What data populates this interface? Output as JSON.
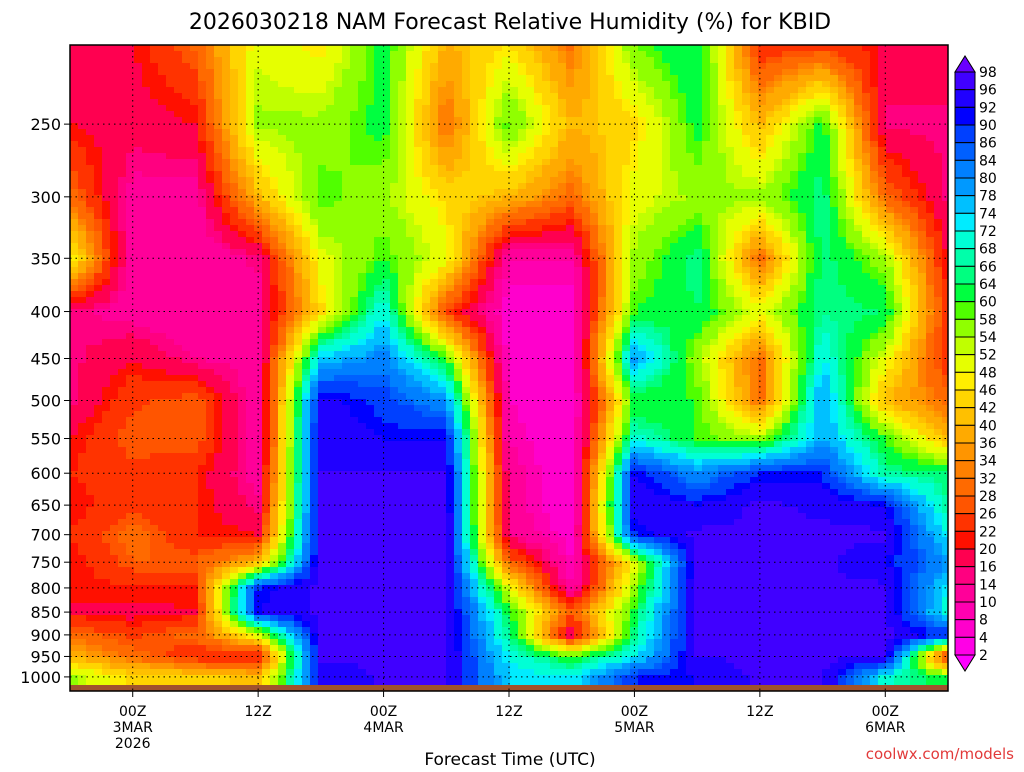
{
  "chart_data": {
    "type": "heatmap",
    "title": "2026030218 NAM Forecast Relative Humidity (%) for KBID",
    "xlabel": "Forecast Time (UTC)",
    "ylabel": "",
    "credit": "coolwx.com/models",
    "x_unit": "forecast hour",
    "xlim": [
      -6,
      78
    ],
    "ylim_hPa": [
      205,
      1036
    ],
    "y_scale": "log-pressure",
    "grid": true,
    "y_ticks": [
      "250",
      "300",
      "350",
      "400",
      "450",
      "500",
      "550",
      "600",
      "650",
      "700",
      "750",
      "800",
      "850",
      "900",
      "950",
      "1000"
    ],
    "y_tick_values": [
      250,
      300,
      350,
      400,
      450,
      500,
      550,
      600,
      650,
      700,
      750,
      800,
      850,
      900,
      950,
      1000
    ],
    "x_ticks": [
      {
        "hour": 0,
        "lines": [
          "00Z",
          "3MAR",
          "2026"
        ]
      },
      {
        "hour": 12,
        "lines": [
          "12Z"
        ]
      },
      {
        "hour": 24,
        "lines": [
          "00Z",
          "4MAR"
        ]
      },
      {
        "hour": 36,
        "lines": [
          "12Z"
        ]
      },
      {
        "hour": 48,
        "lines": [
          "00Z",
          "5MAR"
        ]
      },
      {
        "hour": 60,
        "lines": [
          "12Z"
        ]
      },
      {
        "hour": 72,
        "lines": [
          "00Z",
          "6MAR"
        ]
      }
    ],
    "colorbar": {
      "labels": [
        "98",
        "96",
        "92",
        "90",
        "86",
        "84",
        "80",
        "78",
        "74",
        "72",
        "68",
        "66",
        "64",
        "60",
        "58",
        "54",
        "52",
        "48",
        "46",
        "42",
        "40",
        "36",
        "34",
        "32",
        "28",
        "26",
        "22",
        "20",
        "16",
        "14",
        "10",
        "8",
        "4",
        "2"
      ],
      "thresholds": [
        2,
        4,
        8,
        10,
        14,
        16,
        20,
        22,
        26,
        28,
        32,
        34,
        36,
        40,
        42,
        46,
        48,
        52,
        54,
        58,
        60,
        64,
        66,
        68,
        72,
        74,
        78,
        80,
        84,
        86,
        90,
        92,
        96,
        98
      ],
      "colors": [
        "#ff00ff",
        "#ff00e6",
        "#ff00cc",
        "#ff00b0",
        "#ff0099",
        "#ff0080",
        "#ff0050",
        "#ff1000",
        "#ff3300",
        "#ff5500",
        "#ff6a00",
        "#ff8000",
        "#ff9500",
        "#ffaa00",
        "#ffc000",
        "#ffd500",
        "#ffee00",
        "#e6ff00",
        "#c0ff00",
        "#90ff00",
        "#50ff00",
        "#00ff40",
        "#00ff80",
        "#00ffaa",
        "#00ffd5",
        "#00ecff",
        "#00c0ff",
        "#0099ff",
        "#0080ff",
        "#0060ff",
        "#0040ff",
        "#0000ff",
        "#2000ff",
        "#4000ff",
        "#6a00ff"
      ]
    },
    "times": [
      -6,
      0,
      6,
      12,
      18,
      24,
      30,
      36,
      42,
      48,
      54,
      60,
      66,
      72,
      78
    ],
    "levels": [
      200,
      250,
      300,
      350,
      400,
      450,
      500,
      550,
      600,
      650,
      700,
      750,
      800,
      850,
      900,
      950,
      1000
    ],
    "rh": [
      [
        20,
        20,
        30,
        50,
        15,
        15,
        15,
        20,
        22,
        20,
        22,
        20,
        20,
        20,
        30,
        40,
        55
      ],
      [
        20,
        18,
        12,
        10,
        12,
        20,
        25,
        28,
        25,
        25,
        30,
        28,
        22,
        18,
        25,
        30,
        45
      ],
      [
        30,
        20,
        12,
        10,
        10,
        14,
        28,
        28,
        22,
        22,
        22,
        28,
        22,
        20,
        30,
        22,
        45
      ],
      [
        50,
        55,
        40,
        15,
        12,
        12,
        10,
        10,
        12,
        15,
        20,
        40,
        90,
        92,
        50,
        20,
        40
      ],
      [
        45,
        55,
        60,
        50,
        45,
        75,
        94,
        96,
        96,
        97,
        97,
        97,
        97,
        97,
        97,
        97,
        92
      ],
      [
        62,
        62,
        55,
        60,
        72,
        82,
        88,
        92,
        96,
        97,
        97,
        97,
        97,
        97,
        97,
        97,
        97
      ],
      [
        40,
        30,
        45,
        50,
        25,
        60,
        80,
        92,
        96,
        97,
        97,
        97,
        97,
        97,
        97,
        97,
        97
      ],
      [
        45,
        60,
        40,
        10,
        6,
        6,
        8,
        10,
        12,
        12,
        14,
        30,
        50,
        62,
        66,
        72,
        74
      ],
      [
        30,
        40,
        30,
        10,
        6,
        4,
        4,
        4,
        4,
        4,
        6,
        8,
        10,
        28,
        16,
        60,
        72
      ],
      [
        60,
        45,
        50,
        55,
        60,
        80,
        60,
        70,
        92,
        96,
        90,
        50,
        55,
        62,
        66,
        72,
        90
      ],
      [
        65,
        62,
        55,
        66,
        64,
        55,
        60,
        60,
        80,
        92,
        97,
        97,
        97,
        97,
        97,
        96,
        92
      ],
      [
        20,
        40,
        55,
        30,
        50,
        30,
        30,
        55,
        90,
        97,
        97,
        97,
        97,
        97,
        97,
        97,
        97
      ],
      [
        20,
        62,
        66,
        66,
        66,
        72,
        80,
        78,
        90,
        95,
        97,
        97,
        97,
        97,
        97,
        97,
        97
      ],
      [
        20,
        15,
        30,
        55,
        64,
        50,
        40,
        60,
        66,
        92,
        97,
        92,
        97,
        97,
        97,
        97,
        70
      ],
      [
        20,
        15,
        15,
        20,
        22,
        22,
        30,
        40,
        64,
        66,
        72,
        80,
        72,
        70,
        90,
        20,
        60
      ]
    ],
    "ground_color": "#a0522d"
  }
}
